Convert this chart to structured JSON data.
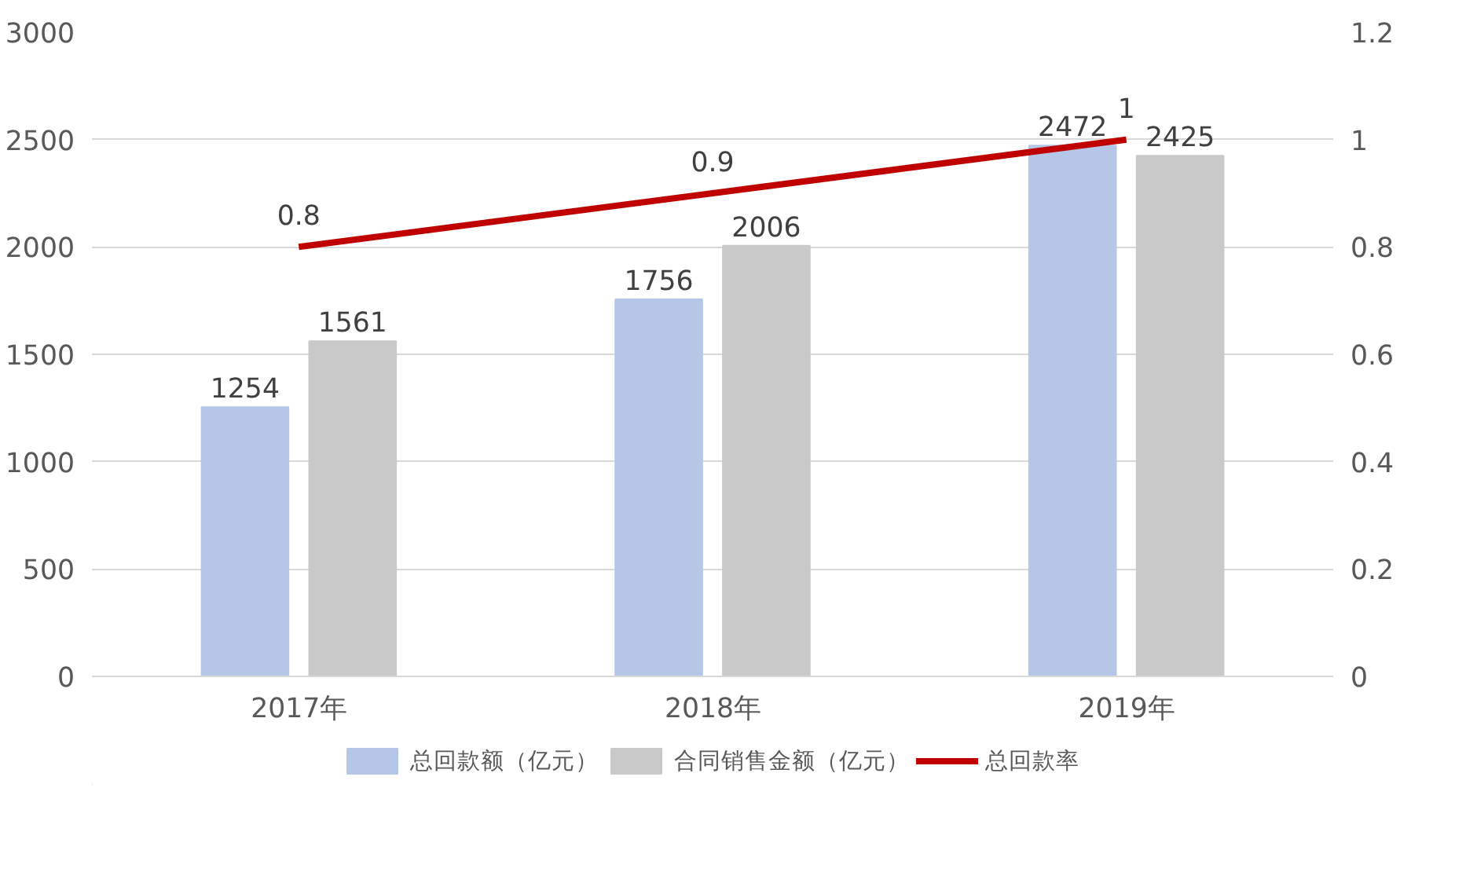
{
  "chart_data": {
    "type": "bar",
    "categories": [
      "2017年",
      "2018年",
      "2019年"
    ],
    "series": [
      {
        "name": "总回款额（亿元）",
        "color": "#b4c7e7",
        "values": [
          1254,
          1756,
          2472
        ]
      },
      {
        "name": "合同销售金额（亿元）",
        "color": "#c9c9c9",
        "values": [
          1561,
          2006,
          2425
        ]
      },
      {
        "name": "总回款率",
        "type": "line",
        "axis": "y2",
        "color": "#c00000",
        "values": [
          0.8,
          0.9,
          1
        ]
      }
    ],
    "ylim": [
      0,
      3000
    ],
    "yticks": [
      0,
      500,
      1000,
      1500,
      2000,
      2500,
      3000
    ],
    "y2lim": [
      0,
      1.2
    ],
    "y2ticks": [
      0,
      0.2,
      0.4,
      0.6,
      0.8,
      1,
      1.2
    ],
    "data_labels": true,
    "grid": "y",
    "legend": "bottom",
    "marker": "none",
    "line_style": "solid"
  }
}
